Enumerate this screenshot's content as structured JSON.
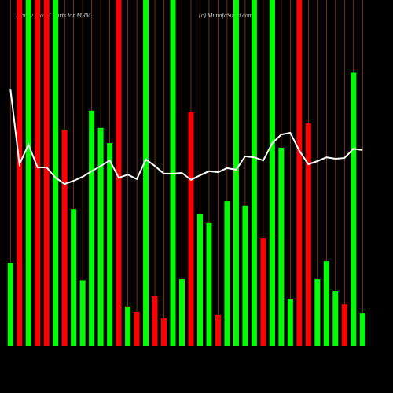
{
  "chart_data": {
    "type": "bar",
    "title": "Money Flow  Charts for MRM",
    "subtitle": "(c) MunafaSutra.com",
    "categories": [
      null,
      null,
      null,
      null,
      null,
      null,
      null,
      null,
      null,
      null,
      null,
      null,
      null,
      null,
      null,
      null,
      null,
      null,
      null,
      null,
      null,
      null,
      null,
      null,
      null,
      null,
      null,
      null,
      null,
      null,
      null,
      null,
      null,
      null,
      null,
      null,
      null,
      null,
      null,
      null
    ],
    "values": [
      24,
      100,
      100,
      100,
      100,
      100,
      62.5,
      39.5,
      19,
      68,
      63,
      58.6,
      100,
      11.4,
      9.8,
      100,
      14.3,
      8,
      100,
      19.3,
      67.5,
      38.2,
      35.5,
      8.9,
      41.8,
      100,
      40.5,
      100,
      31.1,
      100,
      57.3,
      13.6,
      100,
      64.3,
      19.3,
      24.5,
      15.9,
      12,
      79,
      9.5
    ],
    "bar_colors": [
      "#00ff00",
      "#ff0000",
      "#00ff00",
      "#ff0000",
      "#ff0000",
      "#00ff00",
      "#ff0000",
      "#00ff00",
      "#00ff00",
      "#00ff00",
      "#00ff00",
      "#00ff00",
      "#ff0000",
      "#00ff00",
      "#ff0000",
      "#00ff00",
      "#ff0000",
      "#ff0000",
      "#00ff00",
      "#00ff00",
      "#ff0000",
      "#00ff00",
      "#00ff00",
      "#ff0000",
      "#00ff00",
      "#00ff00",
      "#00ff00",
      "#00ff00",
      "#ff0000",
      "#00ff00",
      "#00ff00",
      "#00ff00",
      "#ff0000",
      "#ff0000",
      "#00ff00",
      "#00ff00",
      "#00ff00",
      "#ff0000",
      "#00ff00",
      "#00ff00"
    ],
    "line_values": [
      74.3,
      52.5,
      58.2,
      51.6,
      51.6,
      48.6,
      46.8,
      47.7,
      48.9,
      50.5,
      52,
      53.6,
      48.6,
      49.5,
      48.2,
      53.9,
      52,
      49.8,
      49.8,
      50,
      48,
      49.3,
      50.5,
      50.2,
      51.4,
      50.9,
      54.8,
      54.5,
      53.6,
      58.6,
      61.1,
      61.6,
      56.4,
      52.5,
      53.4,
      54.5,
      54.1,
      54.3,
      57,
      56.6
    ],
    "line_color": "#ffffff",
    "grid_color": "#b35900",
    "ylim": [
      0,
      100
    ]
  }
}
